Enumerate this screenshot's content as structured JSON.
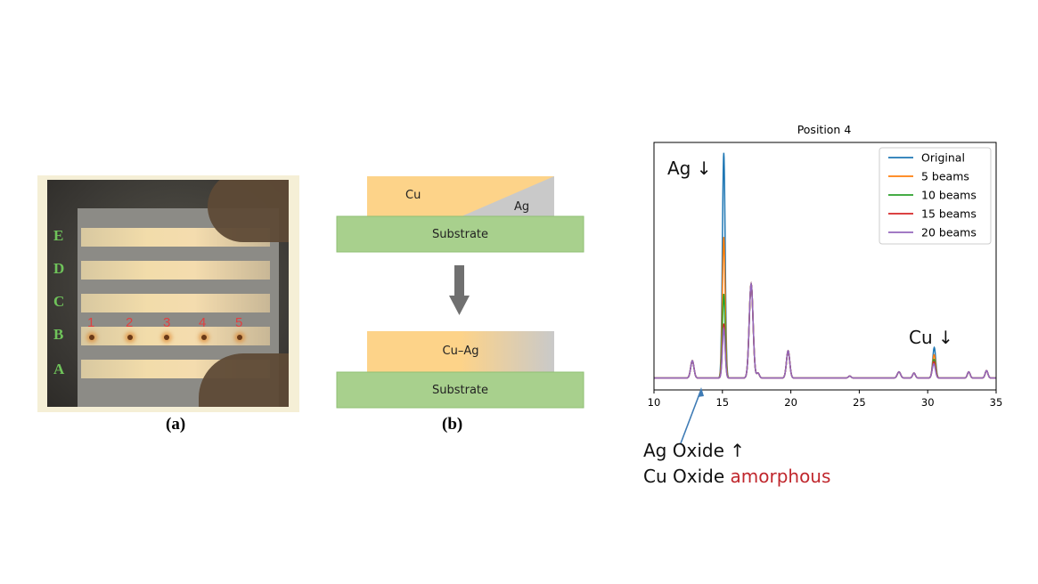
{
  "panel_a": {
    "caption": "(a)",
    "row_labels": [
      "E",
      "D",
      "C",
      "B",
      "A"
    ],
    "position_numbers": [
      "1",
      "2",
      "3",
      "4",
      "5"
    ]
  },
  "panel_b": {
    "caption": "(b)",
    "top_stack": {
      "left_layer": "Cu",
      "right_layer": "Ag",
      "base": "Substrate"
    },
    "bottom_stack": {
      "layer": "Cu–Ag",
      "base": "Substrate"
    },
    "colors": {
      "cu": "#fdd389",
      "ag": "#c9c9c9",
      "substrate": "#a8d08d",
      "arrow": "#707070"
    }
  },
  "annotations": {
    "ag_peak": "Ag ↓",
    "cu_peak": "Cu ↓",
    "ag_oxide": "Ag Oxide ↑",
    "cu_oxide_prefix": "Cu Oxide",
    "cu_oxide_state": "amorphous",
    "highlight_color": "#c0272d",
    "arrow_color": "#3e7bb5"
  },
  "chart_data": {
    "type": "line",
    "title": "Position 4",
    "xlabel": "",
    "ylabel": "",
    "xlim": [
      10,
      35
    ],
    "ylim": [
      0,
      100
    ],
    "xticks": [
      10,
      15,
      20,
      25,
      30,
      35
    ],
    "xtick_labels": [
      "10",
      "15",
      "20",
      "25",
      "30",
      "35"
    ],
    "legend_position": "top-right",
    "baseline": 4.8,
    "grid": false,
    "common_peaks": [
      {
        "x": 12.8,
        "h": 7,
        "w": 0.12
      },
      {
        "x": 17.1,
        "h": 38,
        "w": 0.14
      },
      {
        "x": 17.6,
        "h": 2,
        "w": 0.1
      },
      {
        "x": 19.8,
        "h": 11,
        "w": 0.12
      },
      {
        "x": 24.3,
        "h": 0.8,
        "w": 0.1
      },
      {
        "x": 27.9,
        "h": 2.5,
        "w": 0.12
      },
      {
        "x": 29.0,
        "h": 2,
        "w": 0.1
      },
      {
        "x": 30.4,
        "h": 3.5,
        "w": 0.1
      },
      {
        "x": 33.0,
        "h": 2.5,
        "w": 0.1
      },
      {
        "x": 34.3,
        "h": 3,
        "w": 0.1
      }
    ],
    "series": [
      {
        "name": "Original",
        "color": "#1f77b4",
        "peaks": [
          {
            "x": 15.1,
            "h": 91,
            "w": 0.1
          },
          {
            "x": 30.5,
            "h": 10,
            "w": 0.1
          }
        ]
      },
      {
        "name": "5 beams",
        "color": "#ff7f0e",
        "peaks": [
          {
            "x": 15.1,
            "h": 57,
            "w": 0.1
          },
          {
            "x": 30.5,
            "h": 7,
            "w": 0.1
          }
        ]
      },
      {
        "name": "10 beams",
        "color": "#2ca02c",
        "peaks": [
          {
            "x": 15.1,
            "h": 34,
            "w": 0.1
          },
          {
            "x": 30.5,
            "h": 5,
            "w": 0.1
          }
        ]
      },
      {
        "name": "15 beams",
        "color": "#d62728",
        "peaks": [
          {
            "x": 15.1,
            "h": 22,
            "w": 0.1
          },
          {
            "x": 30.5,
            "h": 4,
            "w": 0.1
          }
        ]
      },
      {
        "name": "20 beams",
        "color": "#9467bd",
        "peaks": [
          {
            "x": 15.1,
            "h": 20,
            "w": 0.1
          },
          {
            "x": 30.5,
            "h": 3,
            "w": 0.1
          }
        ]
      }
    ]
  }
}
